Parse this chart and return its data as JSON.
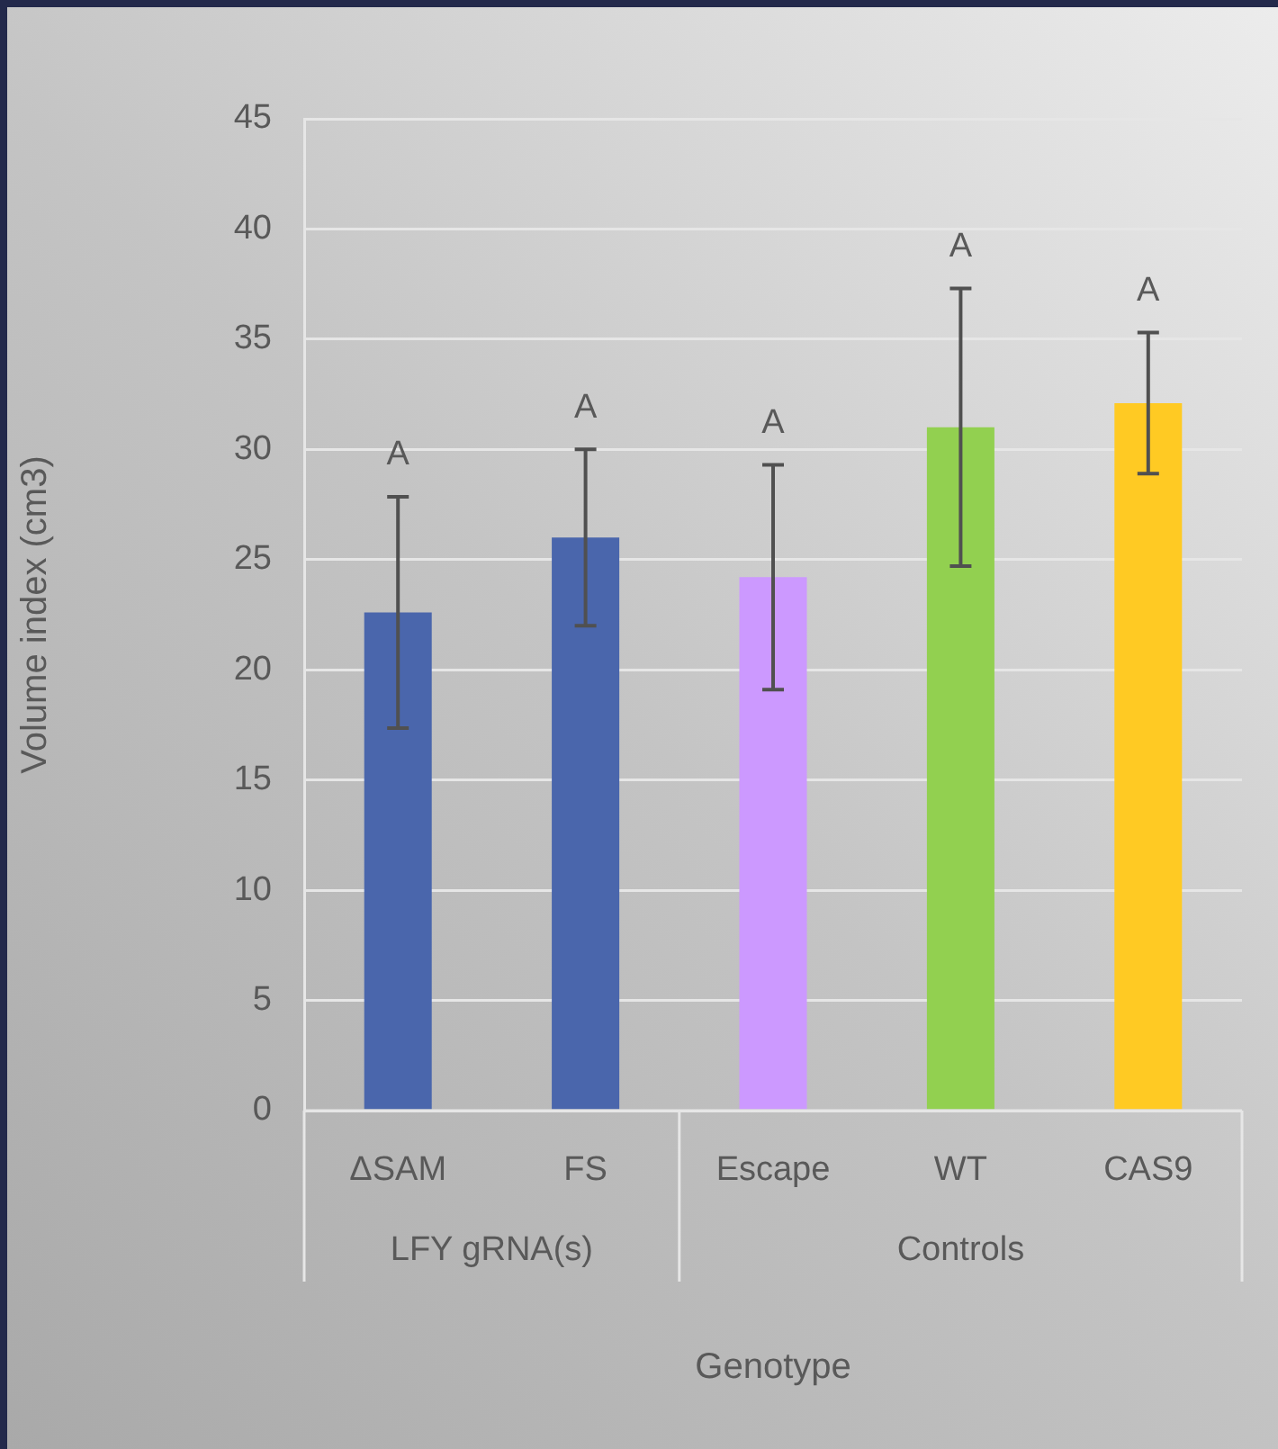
{
  "chart_data": {
    "type": "bar",
    "ylabel": "Volume index (cm3)",
    "xlabel": "Genotype",
    "categories": [
      "ΔSAM",
      "FS",
      "Escape",
      "WT",
      "CAS9"
    ],
    "values": [
      22.6,
      26.0,
      24.2,
      31.0,
      32.1
    ],
    "colors": [
      "#4a66ac",
      "#4a66ac",
      "#cc99ff",
      "#92d050",
      "#ffca23"
    ],
    "errors": [
      5.25,
      4.0,
      5.1,
      6.3,
      3.2
    ],
    "ylim": [
      0,
      45
    ],
    "yticks": [
      0,
      5,
      10,
      15,
      20,
      25,
      30,
      35,
      40,
      45
    ],
    "grid": "y",
    "legend": false,
    "annotations": [
      "LFY gRNA(s)",
      "Controls",
      "A",
      "A",
      "A",
      "A",
      "A"
    ]
  }
}
